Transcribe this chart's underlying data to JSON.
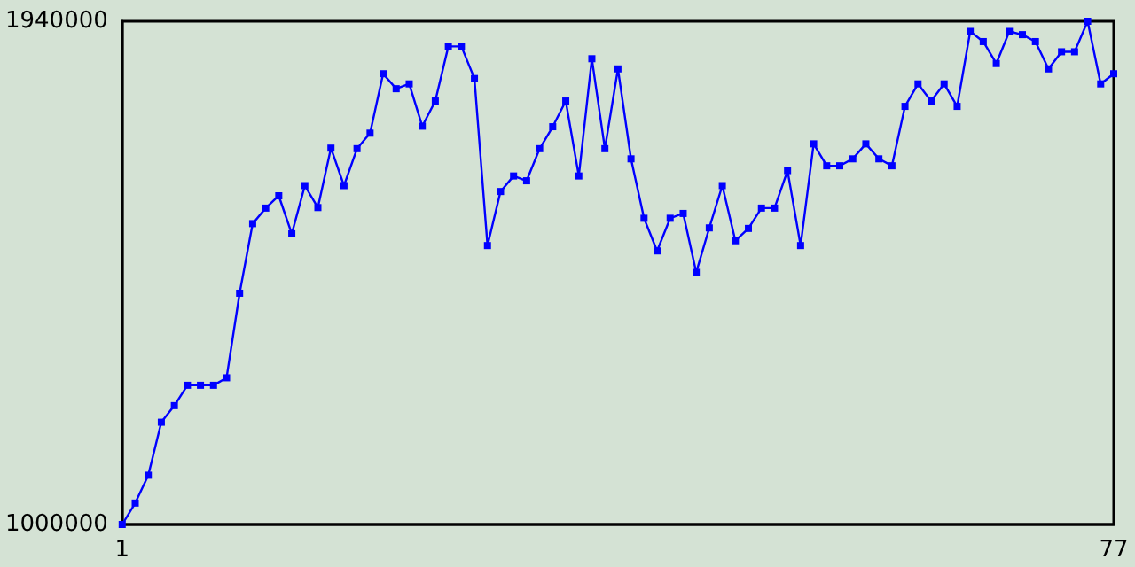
{
  "chart_data": {
    "type": "line",
    "x": [
      1,
      2,
      3,
      4,
      5,
      6,
      7,
      8,
      9,
      10,
      11,
      12,
      13,
      14,
      15,
      16,
      17,
      18,
      19,
      20,
      21,
      22,
      23,
      24,
      25,
      26,
      27,
      28,
      29,
      30,
      31,
      32,
      33,
      34,
      35,
      36,
      37,
      38,
      39,
      40,
      41,
      42,
      43,
      44,
      45,
      46,
      47,
      48,
      49,
      50,
      51,
      52,
      53,
      54,
      55,
      56,
      57,
      58,
      59,
      60,
      61,
      62,
      63,
      64,
      65,
      66,
      67,
      68,
      69,
      70,
      71,
      72,
      73,
      74,
      75,
      76,
      77
    ],
    "series": [
      {
        "color": "#0000ff",
        "values": [
          1000000,
          1040000,
          1092000,
          1191000,
          1222000,
          1260000,
          1260000,
          1260000,
          1274000,
          1432000,
          1562000,
          1591000,
          1614000,
          1543000,
          1633000,
          1592000,
          1703000,
          1633000,
          1702000,
          1731000,
          1842000,
          1814000,
          1823000,
          1744000,
          1791000,
          1893000,
          1893000,
          1833000,
          1521000,
          1622000,
          1651000,
          1642000,
          1702000,
          1743000,
          1791000,
          1651000,
          1870000,
          1702000,
          1851000,
          1683000,
          1572000,
          1511000,
          1572000,
          1581000,
          1471000,
          1554000,
          1633000,
          1530000,
          1553000,
          1591000,
          1591000,
          1661000,
          1521000,
          1711000,
          1670000,
          1670000,
          1683000,
          1711000,
          1683000,
          1670000,
          1781000,
          1823000,
          1791000,
          1823000,
          1781000,
          1921000,
          1902000,
          1861000,
          1921000,
          1915000,
          1902000,
          1851000,
          1883000,
          1883000,
          1940000,
          1823000,
          1842000
        ]
      }
    ],
    "xlim": [
      1,
      77
    ],
    "xticks": [
      1,
      77
    ],
    "ylim": [
      1000000,
      1940000
    ],
    "yticks": [
      1000000,
      1940000
    ],
    "grid": false,
    "marker": "square",
    "line_style": "solid"
  }
}
